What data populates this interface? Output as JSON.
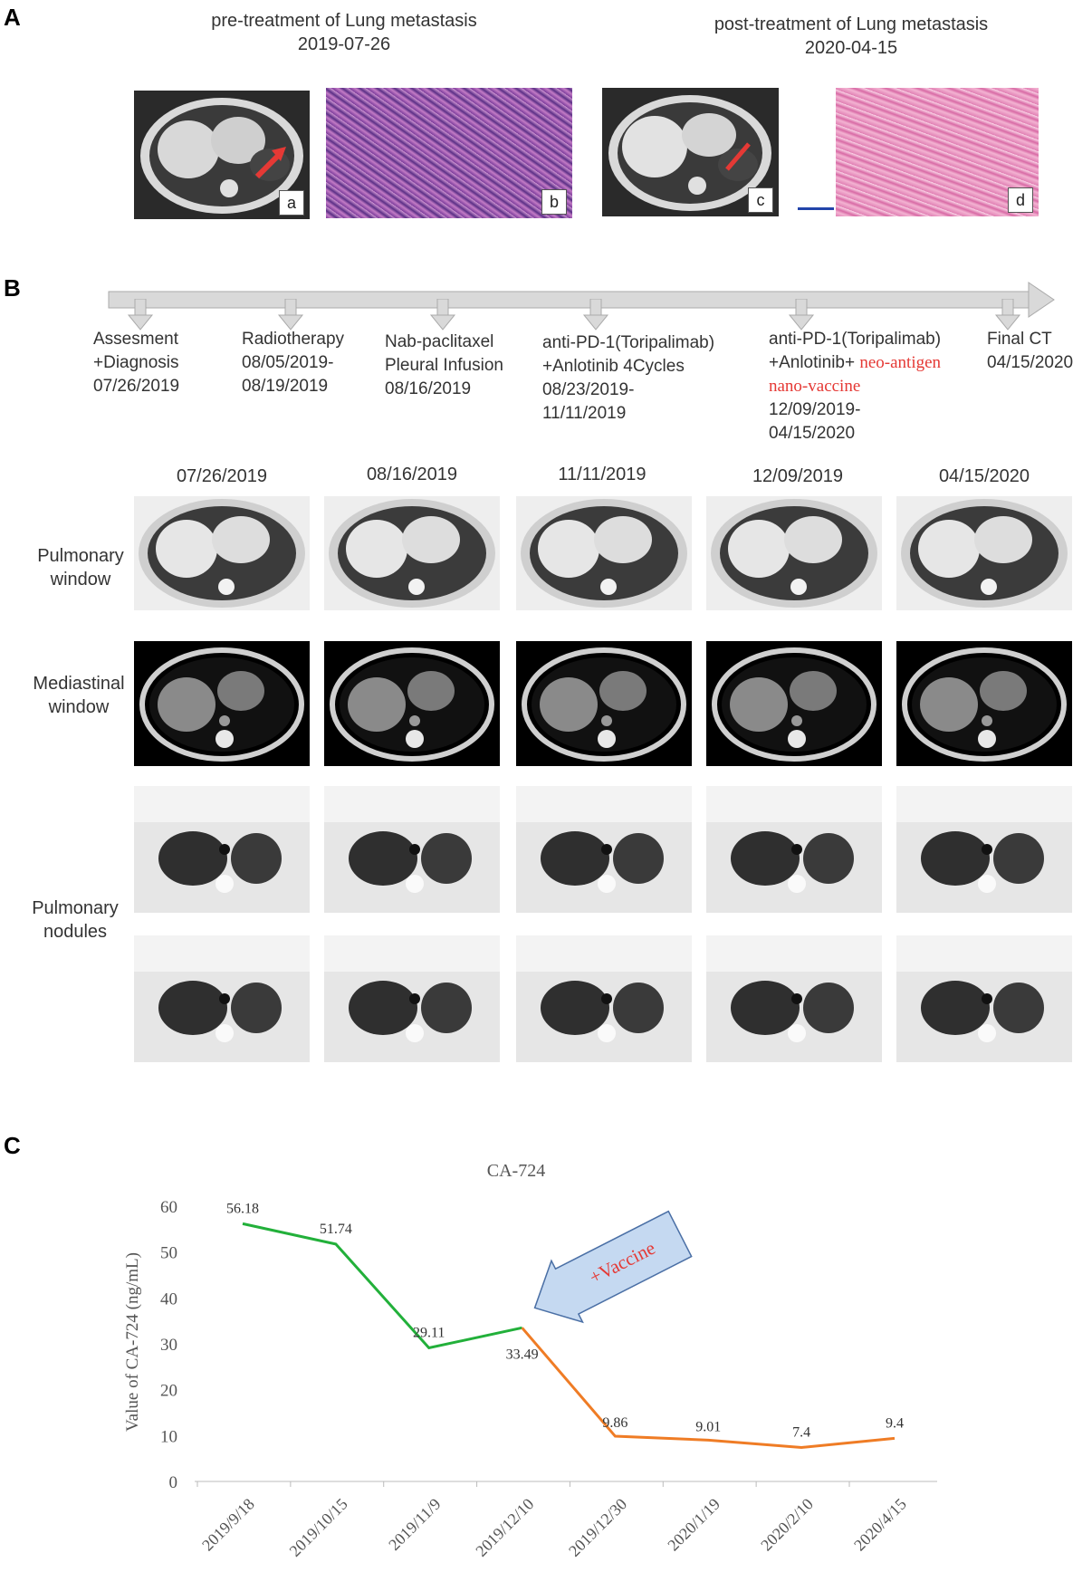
{
  "panelA": {
    "letter": "A",
    "left_caption": {
      "title": "pre-treatment of Lung metastasis",
      "date": "2019-07-26"
    },
    "right_caption": {
      "title": "post-treatment of Lung metastasis",
      "date": "2020-04-15"
    },
    "sublabels": [
      "a",
      "b",
      "c",
      "d"
    ]
  },
  "panelB": {
    "letter": "B",
    "timeline": [
      {
        "lines": [
          "Assesment",
          "+Diagnosis",
          "07/26/2019"
        ]
      },
      {
        "lines": [
          "Radiotherapy",
          "08/05/2019-",
          "08/19/2019"
        ]
      },
      {
        "lines": [
          "Nab-paclitaxel",
          "Pleural Infusion",
          "08/16/2019"
        ]
      },
      {
        "lines": [
          "anti-PD-1(Toripalimab)",
          "+Anlotinib  4Cycles",
          "08/23/2019-",
          "11/11/2019"
        ]
      },
      {
        "line1": "anti-PD-1(Toripalimab)",
        "line2a": "+Anlotinib+ ",
        "line2b": "neo-antigen",
        "line3": "nano-vaccine",
        "line4": "12/09/2019-",
        "line5": "04/15/2020"
      },
      {
        "lines": [
          "Final CT",
          "04/15/2020"
        ]
      }
    ],
    "dates": [
      "07/26/2019",
      "08/16/2019",
      "11/11/2019",
      "12/09/2019",
      "04/15/2020"
    ],
    "row_labels": {
      "pulmonary_window": [
        "Pulmonary",
        "window"
      ],
      "mediastinal_window": [
        "Mediastinal",
        "window"
      ],
      "pulmonary_nodules": [
        "Pulmonary",
        "nodules"
      ]
    }
  },
  "panelC": {
    "letter": "C",
    "chart_data": {
      "type": "line",
      "title": "CA-724",
      "ylabel": "Value of CA-724 (ng/mL)",
      "xlabel": "",
      "ylim": [
        0,
        60
      ],
      "yticks": [
        0,
        10,
        20,
        30,
        40,
        50,
        60
      ],
      "categories": [
        "2019/9/18",
        "2019/10/15",
        "2019/11/9",
        "2019/12/10",
        "2019/12/30",
        "2020/1/19",
        "2020/2/10",
        "2020/4/15"
      ],
      "values": [
        56.18,
        51.74,
        29.11,
        33.49,
        9.86,
        9.01,
        7.4,
        9.4
      ],
      "value_labels": [
        "56.18",
        "51.74",
        "29.11",
        "33.49",
        "9.86",
        "9.01",
        "7.4",
        "9.4"
      ],
      "segments": [
        {
          "from": 0,
          "to": 3,
          "color": "#22b03a"
        },
        {
          "from": 3,
          "to": 7,
          "color": "#ef7c25"
        }
      ],
      "annotation": {
        "text": "+Vaccine",
        "points_to": "2019/12/10",
        "text_color": "#e53935",
        "fill": "#c5d9f1"
      },
      "grid": false
    }
  }
}
